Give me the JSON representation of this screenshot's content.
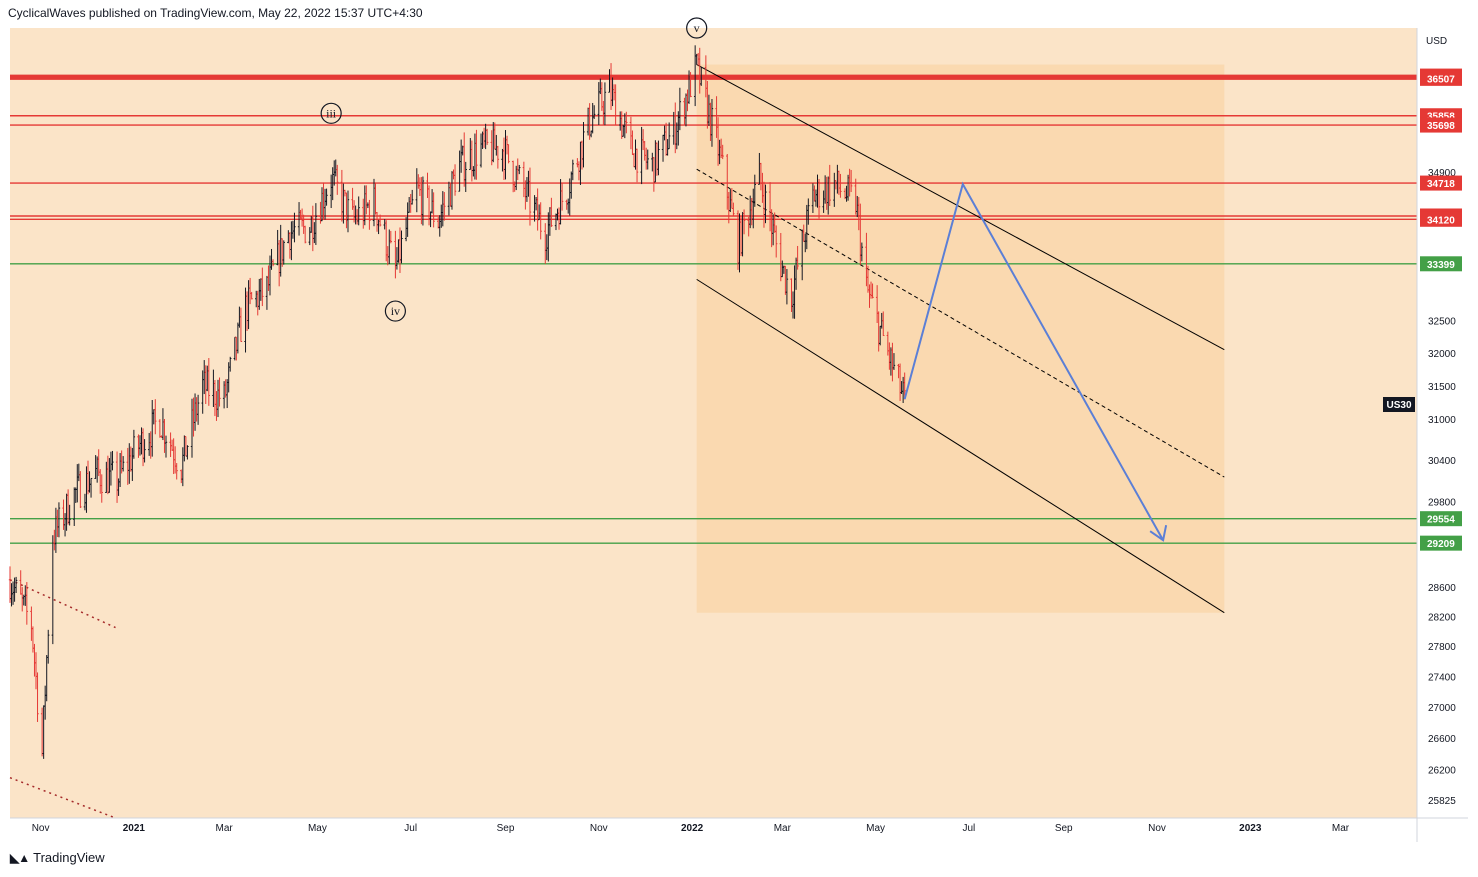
{
  "header": {
    "text": "CyclicalWaves published on TradingView.com, May 22, 2022 15:37 UTC+4:30"
  },
  "footer": {
    "brand": "TradingView",
    "logo_icon": "tradingview-logo-icon"
  },
  "colors": {
    "background": "#fbe4c8",
    "bull": "#131722",
    "bear": "#e53935",
    "resistance": "#e53935",
    "support": "#43a047",
    "projection": "#5b7fd6",
    "channel": "#000000",
    "channel_fill": "#f9d6a8"
  },
  "chart_data": {
    "type": "candlestick",
    "symbol": "US30",
    "currency": "USD",
    "y_axis_scale": "log",
    "ylim": [
      25600,
      37400
    ],
    "y_ticks": [
      25825,
      26200,
      26600,
      27000,
      27400,
      27800,
      28200,
      28600,
      29800,
      30400,
      31000,
      31500,
      32000,
      32500,
      34900
    ],
    "x_ticks": [
      "Nov",
      "2021",
      "Mar",
      "May",
      "Jul",
      "Sep",
      "Nov",
      "2022",
      "Mar",
      "May",
      "Jul",
      "Sep",
      "Nov",
      "2023",
      "Mar"
    ],
    "x_range": [
      "2020-10-12",
      "2023-04-20"
    ],
    "resistance_levels": [
      36547,
      36507,
      35858,
      35698,
      34718,
      34174,
      34120
    ],
    "support_levels": [
      33399,
      29554,
      29209
    ],
    "wave_labels": [
      {
        "label": "iii",
        "date": "2021-05-10",
        "price": 35900
      },
      {
        "label": "iv",
        "date": "2021-06-21",
        "price": 32650
      },
      {
        "label": "v",
        "date": "2022-01-04",
        "price": 37400
      }
    ],
    "price_path": [
      [
        "2020-10-12",
        28700
      ],
      [
        "2020-10-26",
        28100
      ],
      [
        "2020-11-02",
        26400
      ],
      [
        "2020-11-09",
        29300
      ],
      [
        "2020-11-23",
        29900
      ],
      [
        "2020-12-07",
        30200
      ],
      [
        "2020-12-21",
        30100
      ],
      [
        "2021-01-04",
        30600
      ],
      [
        "2021-01-18",
        31000
      ],
      [
        "2021-02-01",
        30300
      ],
      [
        "2021-02-15",
        31500
      ],
      [
        "2021-03-01",
        31300
      ],
      [
        "2021-03-15",
        32700
      ],
      [
        "2021-03-29",
        33000
      ],
      [
        "2021-04-12",
        33900
      ],
      [
        "2021-04-26",
        34000
      ],
      [
        "2021-05-10",
        34800
      ],
      [
        "2021-05-24",
        34100
      ],
      [
        "2021-06-07",
        34400
      ],
      [
        "2021-06-21",
        33300
      ],
      [
        "2021-07-05",
        34600
      ],
      [
        "2021-07-19",
        34100
      ],
      [
        "2021-08-02",
        35000
      ],
      [
        "2021-08-16",
        35300
      ],
      [
        "2021-08-30",
        35300
      ],
      [
        "2021-09-13",
        34600
      ],
      [
        "2021-09-27",
        33900
      ],
      [
        "2021-10-11",
        34600
      ],
      [
        "2021-10-25",
        35700
      ],
      [
        "2021-11-08",
        36300
      ],
      [
        "2021-11-22",
        35300
      ],
      [
        "2021-12-06",
        35000
      ],
      [
        "2021-12-20",
        35600
      ],
      [
        "2022-01-04",
        36700
      ],
      [
        "2022-01-18",
        35300
      ],
      [
        "2022-01-31",
        33700
      ],
      [
        "2022-02-14",
        34800
      ],
      [
        "2022-02-28",
        33400
      ],
      [
        "2022-03-07",
        32900
      ],
      [
        "2022-03-21",
        34500
      ],
      [
        "2022-04-04",
        34700
      ],
      [
        "2022-04-18",
        34400
      ],
      [
        "2022-04-25",
        33000
      ],
      [
        "2022-05-09",
        32000
      ],
      [
        "2022-05-20",
        31260
      ]
    ],
    "last_price_label": "US30",
    "channel": {
      "upper": [
        [
          "2022-01-04",
          36750
        ],
        [
          "2022-12-15",
          32050
        ]
      ],
      "lower": [
        [
          "2022-01-04",
          33150
        ],
        [
          "2022-12-15",
          28250
        ]
      ],
      "middle": [
        [
          "2022-01-04",
          34950
        ],
        [
          "2022-12-15",
          30150
        ]
      ]
    },
    "old_channel": {
      "upper": [
        [
          "2020-10-12",
          28700
        ],
        [
          "2020-12-20",
          28050
        ]
      ],
      "lower": [
        [
          "2020-10-12",
          26100
        ],
        [
          "2020-12-20",
          25600
        ]
      ]
    },
    "projection_path": [
      [
        "2022-05-20",
        31300
      ],
      [
        "2022-06-27",
        34700
      ],
      [
        "2022-11-05",
        29250
      ]
    ]
  }
}
